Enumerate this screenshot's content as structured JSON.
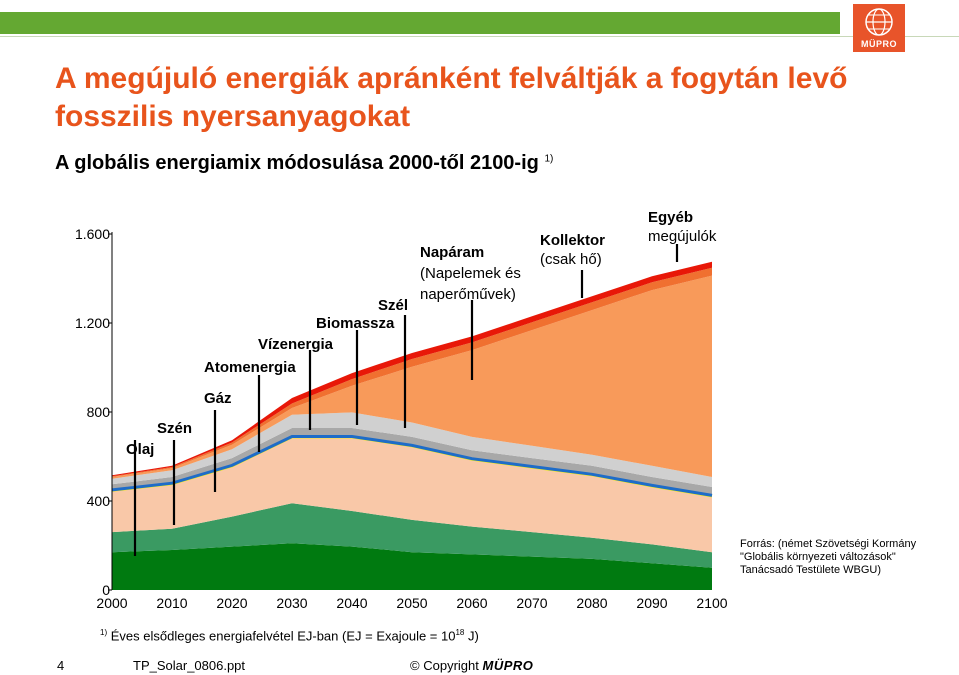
{
  "header": {
    "logo_text": "MÜPRO",
    "title": "A megújuló energiák apránként felváltják a fogytán levő fosszilis nyersanyagokat",
    "subtitle": "A globális energiamix módosulása 2000-től 2100-ig",
    "subtitle_note": "1)"
  },
  "chart_data": {
    "type": "area",
    "stacked": true,
    "x": [
      2000,
      2010,
      2020,
      2030,
      2040,
      2050,
      2060,
      2070,
      2080,
      2090,
      2100
    ],
    "ylim": [
      0,
      1600
    ],
    "xlim": [
      2000,
      2100
    ],
    "ytick_labels": [
      "0",
      "400",
      "800",
      "1.200",
      "1.600"
    ],
    "ytick_values": [
      0,
      400,
      800,
      1200,
      1600
    ],
    "xtick_labels": [
      "2000",
      "2010",
      "2020",
      "2030",
      "2040",
      "2050",
      "2060",
      "2070",
      "2080",
      "2090",
      "2100"
    ],
    "grid": false,
    "series": [
      {
        "name": "Olaj",
        "color": "#007a10",
        "values": [
          170,
          180,
          195,
          210,
          195,
          170,
          160,
          150,
          140,
          120,
          100
        ]
      },
      {
        "name": "Szén",
        "color": "#3a9a62",
        "values": [
          90,
          95,
          135,
          180,
          160,
          145,
          125,
          110,
          95,
          85,
          70
        ]
      },
      {
        "name": "Gáz",
        "color": "#f9c8a8",
        "values": [
          185,
          200,
          225,
          295,
          330,
          330,
          300,
          290,
          280,
          260,
          250
        ]
      },
      {
        "name": "Atomenergia",
        "color": "#1e6cc8",
        "values": [
          8,
          8,
          8,
          8,
          8,
          8,
          8,
          8,
          8,
          8,
          8
        ]
      },
      {
        "name": "Vízenergia",
        "color": "#a8a8a8",
        "values": [
          22,
          25,
          30,
          35,
          35,
          35,
          35,
          35,
          35,
          35,
          35
        ]
      },
      {
        "name": "Biomassza",
        "color": "#d0d0d0",
        "values": [
          25,
          30,
          40,
          60,
          70,
          65,
          60,
          55,
          50,
          50,
          45
        ]
      },
      {
        "name": "Szél",
        "color": "#f89a5a",
        "values": [
          8,
          10,
          20,
          30,
          120,
          250,
          390,
          520,
          650,
          790,
          905
        ]
      },
      {
        "name": "Napáram (Napelemek és naperőművek)",
        "color": "#f07030",
        "values": [
          3,
          5,
          10,
          20,
          30,
          35,
          35,
          35,
          35,
          35,
          35
        ]
      },
      {
        "name": "Kollektor (csak hő)",
        "color": "#e81808",
        "values": [
          5,
          5,
          10,
          25,
          27,
          27,
          27,
          27,
          27,
          27,
          27
        ]
      }
    ],
    "annotations": [
      {
        "name": "olaj",
        "line1": "Olaj",
        "line2": ""
      },
      {
        "name": "szen",
        "line1": "Szén",
        "line2": ""
      },
      {
        "name": "gaz",
        "line1": "Gáz",
        "line2": ""
      },
      {
        "name": "atomenergia",
        "line1": "Atomenergia",
        "line2": ""
      },
      {
        "name": "vizenergia",
        "line1": "Vízenergia",
        "line2": ""
      },
      {
        "name": "biomassza",
        "line1": "Biomassza",
        "line2": ""
      },
      {
        "name": "szel",
        "line1": "Szél",
        "line2": ""
      },
      {
        "name": "naparam",
        "line1": "Napáram",
        "line2": "(Napelemek és",
        "line3": "naperőművek)"
      },
      {
        "name": "kollektor",
        "line1": "Kollektor",
        "line2": "(csak hő)"
      },
      {
        "name": "egyeb",
        "line1": "Egyéb",
        "line2": "megújulók"
      }
    ]
  },
  "source": {
    "line1": "Forrás: (német Szövetségi Kormány",
    "line2": "\"Globális környezeti változások\"",
    "line3": "Tanácsadó Testülete WBGU)"
  },
  "footer": {
    "footnote_mark": "1)",
    "footnote_text": "Éves elsődleges energiafelvétel EJ-ban (EJ = Exajoule = 10",
    "footnote_exp": "18",
    "footnote_tail": " J)",
    "page_number": "4",
    "file_name": "TP_Solar_0806.ppt",
    "copyright_symbol": "©",
    "copyright_label": "Copyright",
    "copyright_brand": "MÜPRO"
  }
}
